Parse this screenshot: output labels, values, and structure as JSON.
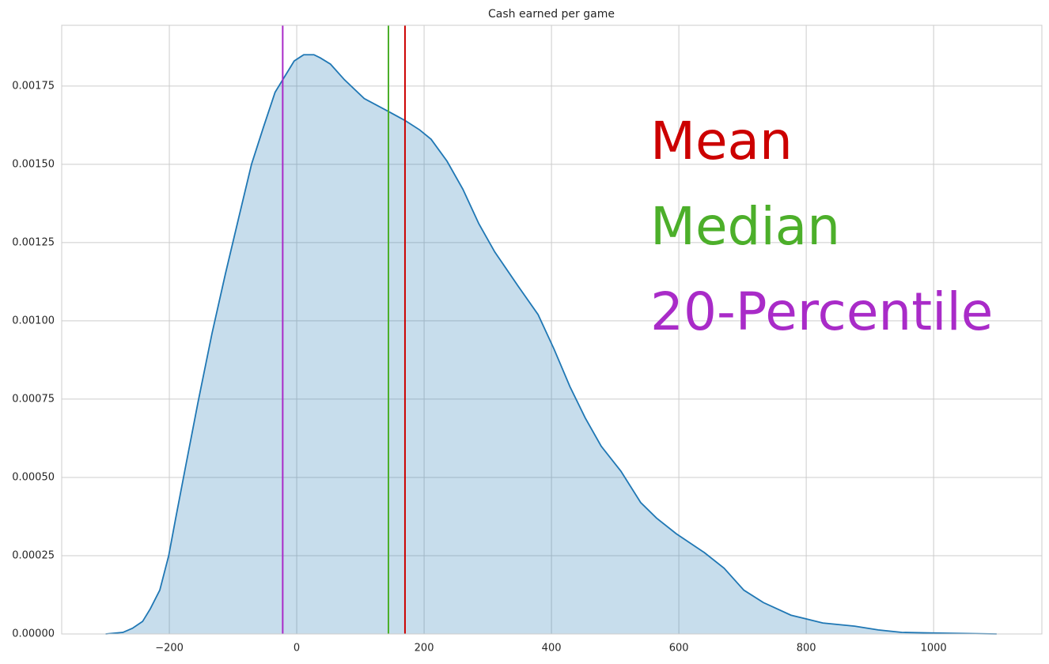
{
  "chart_data": {
    "type": "area",
    "title": "Cash earned per game",
    "x": [
      -300,
      -273,
      -258,
      -242,
      -230,
      -215,
      -201,
      -190,
      -174,
      -155,
      -133,
      -112,
      -91,
      -71,
      -52,
      -34,
      -16,
      -4,
      11,
      27,
      37,
      53,
      75,
      106,
      143,
      170,
      193,
      211,
      236,
      261,
      286,
      311,
      348,
      379,
      404,
      429,
      453,
      478,
      509,
      540,
      565,
      596,
      640,
      671,
      702,
      733,
      776,
      826,
      876,
      913,
      950,
      1000,
      1099
    ],
    "values": [
      0,
      5e-06,
      1.8e-05,
      4e-05,
      8e-05,
      0.00014,
      0.00025,
      0.00037,
      0.00054,
      0.00074,
      0.00096,
      0.00115,
      0.00133,
      0.0015,
      0.00162,
      0.00173,
      0.00179,
      0.00183,
      0.00185,
      0.00185,
      0.00184,
      0.00182,
      0.00177,
      0.00171,
      0.00167,
      0.00164,
      0.00161,
      0.00158,
      0.00151,
      0.00142,
      0.00131,
      0.00122,
      0.00111,
      0.00102,
      0.00091,
      0.00079,
      0.00069,
      0.0006,
      0.00052,
      0.00042,
      0.00037,
      0.00032,
      0.00026,
      0.00021,
      0.00014,
      0.0001,
      6e-05,
      3.5e-05,
      2.5e-05,
      1.3e-05,
      5e-06,
      3e-06,
      0
    ],
    "color": "#1f77b4",
    "markers": [
      {
        "name": "Mean",
        "value": 170,
        "color": "#cc0000"
      },
      {
        "name": "Median",
        "value": 144,
        "color": "#4caf2a"
      },
      {
        "name": "20-Percentile",
        "value": -22,
        "color": "#a92bc8"
      }
    ],
    "xlim": [
      -369,
      1170
    ],
    "xticks": [
      {
        "value": -200,
        "label": "−200"
      },
      0,
      200,
      400,
      600,
      800,
      1000
    ],
    "ylim": [
      0,
      0.001944
    ],
    "yticks": [
      {
        "value": 0,
        "label": "0.00000"
      },
      {
        "value": 0.00025,
        "label": "0.00025"
      },
      {
        "value": 0.0005,
        "label": "0.00050"
      },
      {
        "value": 0.00075,
        "label": "0.00075"
      },
      {
        "value": 0.001,
        "label": "0.00100"
      },
      {
        "value": 0.00125,
        "label": "0.00125"
      },
      {
        "value": 0.0015,
        "label": "0.00150"
      },
      {
        "value": 0.00175,
        "label": "0.00175"
      }
    ],
    "grid": true
  }
}
